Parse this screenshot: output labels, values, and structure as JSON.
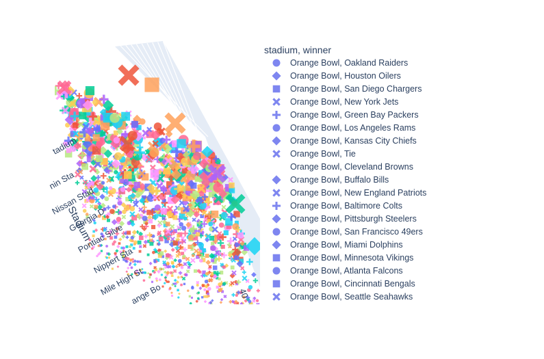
{
  "chart_data": {
    "type": "scatter",
    "subtype": "3d-scatter",
    "legend": {
      "title": "stadium, winner",
      "placement": "right",
      "entries": [
        {
          "label": "Orange Bowl, Oakland Raiders",
          "symbol": "circle"
        },
        {
          "label": "Orange Bowl, Houston Oilers",
          "symbol": "diamond"
        },
        {
          "label": "Orange Bowl, San Diego Chargers",
          "symbol": "square"
        },
        {
          "label": "Orange Bowl, New York Jets",
          "symbol": "x"
        },
        {
          "label": "Orange Bowl, Green Bay Packers",
          "symbol": "cross"
        },
        {
          "label": "Orange Bowl, Los Angeles Rams",
          "symbol": "circle"
        },
        {
          "label": "Orange Bowl, Kansas City Chiefs",
          "symbol": "diamond"
        },
        {
          "label": "Orange Bowl, Tie",
          "symbol": "x"
        },
        {
          "label": "Orange Bowl, Cleveland Browns",
          "symbol": "none"
        },
        {
          "label": "Orange Bowl, Buffalo Bills",
          "symbol": "diamond"
        },
        {
          "label": "Orange Bowl, New England Patriots",
          "symbol": "x"
        },
        {
          "label": "Orange Bowl, Baltimore Colts",
          "symbol": "cross"
        },
        {
          "label": "Orange Bowl, Pittsburgh Steelers",
          "symbol": "diamond"
        },
        {
          "label": "Orange Bowl, San Francisco 49ers",
          "symbol": "circle"
        },
        {
          "label": "Orange Bowl, Miami Dolphins",
          "symbol": "diamond"
        },
        {
          "label": "Orange Bowl, Minnesota Vikings",
          "symbol": "square"
        },
        {
          "label": "Orange Bowl, Atlanta Falcons",
          "symbol": "circle"
        },
        {
          "label": "Orange Bowl, Cincinnati Bengals",
          "symbol": "square"
        },
        {
          "label": "Orange Bowl, Seattle Seahawks",
          "symbol": "x"
        }
      ]
    },
    "axes": {
      "stadium_axis": {
        "title": "Stadium",
        "tick_labels": [
          "tadium",
          "nin Sta",
          "Nissan Stad",
          "Georgia D",
          "Pontiac Silve",
          "Nippert Sta",
          "Mile High St",
          "ange Bo"
        ]
      },
      "numeric_axis": {
        "tick_labels": [
          "40"
        ]
      }
    },
    "palette": [
      "#636efa",
      "#EF553B",
      "#00cc96",
      "#ab63fa",
      "#FFA15A",
      "#19d3f3",
      "#FF6692",
      "#B6E880",
      "#FF97FF",
      "#FECB52"
    ],
    "legend_marker_color": "#7e86f0",
    "plot_background": "#e5ecf6",
    "grid": true
  }
}
